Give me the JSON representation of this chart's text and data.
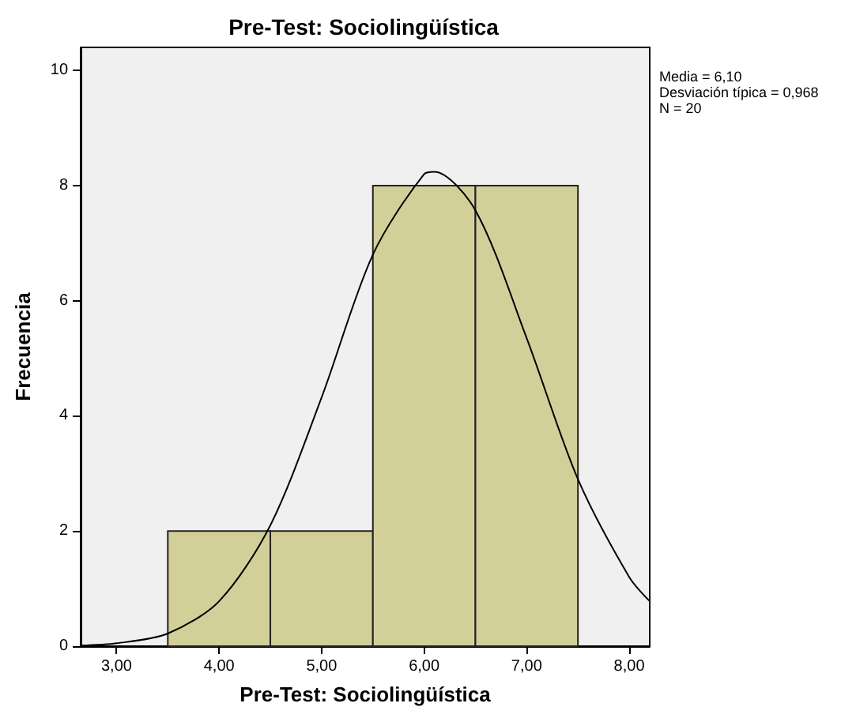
{
  "chart_data": {
    "type": "histogram",
    "title": "Pre-Test: Sociolingüística",
    "xlabel": "Pre-Test: Sociolingüística",
    "ylabel": "Frecuencia",
    "bins": [
      3.5,
      4.5,
      5.5,
      6.5,
      7.5
    ],
    "values": [
      2,
      2,
      8,
      8
    ],
    "color": "#d3cf99",
    "series": [
      {
        "type": "line",
        "color": "#000000",
        "x": [
          2.65,
          3.0,
          3.5,
          4.0,
          4.5,
          5.0,
          5.5,
          6.0,
          6.1,
          6.5,
          7.0,
          7.5,
          8.0,
          8.2
        ],
        "values": [
          0.01,
          0.05,
          0.22,
          0.78,
          2.1,
          4.32,
          6.8,
          8.2,
          8.24,
          7.57,
          5.35,
          2.9,
          1.2,
          0.78
        ]
      }
    ],
    "xlim": [
      2.65,
      8.2
    ],
    "xticks": [
      {
        "value": 3,
        "label": "3,00"
      },
      {
        "value": 4,
        "label": "4,00"
      },
      {
        "value": 5,
        "label": "5,00"
      },
      {
        "value": 6,
        "label": "6,00"
      },
      {
        "value": 7,
        "label": "7,00"
      },
      {
        "value": 8,
        "label": "8,00"
      }
    ],
    "ylim": [
      0,
      10.4
    ],
    "yticks": [
      0,
      2,
      4,
      6,
      8,
      10
    ],
    "annotations": [
      "Media = 6,10",
      "Desviación típica = 0,968",
      "N = 20"
    ],
    "grid": false,
    "marker": "none"
  }
}
